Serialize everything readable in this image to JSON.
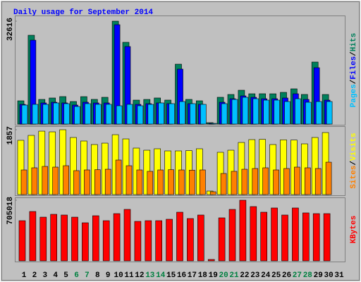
{
  "title": "Daily usage for September 2014",
  "legend_separator": "/",
  "chart_data": [
    {
      "type": "bar",
      "categories": [
        "1",
        "2",
        "3",
        "4",
        "5",
        "6",
        "7",
        "8",
        "9",
        "10",
        "11",
        "12",
        "13",
        "14",
        "15",
        "16",
        "17",
        "18",
        "19",
        "20",
        "21",
        "22",
        "23",
        "24",
        "25",
        "26",
        "27",
        "28",
        "29",
        "30",
        "31"
      ],
      "x_label_colors": [
        "#000000",
        "#000000",
        "#000000",
        "#000000",
        "#000000",
        "#008040",
        "#008040",
        "#000000",
        "#000000",
        "#000000",
        "#000000",
        "#000000",
        "#008040",
        "#008040",
        "#000000",
        "#000000",
        "#000000",
        "#000000",
        "#000000",
        "#008040",
        "#008040",
        "#000000",
        "#000000",
        "#000000",
        "#000000",
        "#000000",
        "#008040",
        "#008040",
        "#000000",
        "#000000",
        "#000000"
      ],
      "ylim": [
        0,
        32616
      ],
      "yticks": [
        32616
      ],
      "series": [
        {
          "name": "Hits",
          "color": "#00805c",
          "values": [
            7372,
            28148,
            7819,
            8266,
            8713,
            7149,
            8700,
            7830,
            8489,
            32616,
            25914,
            7596,
            7812,
            8270,
            7601,
            18989,
            7822,
            7375,
            447,
            8491,
            9383,
            10723,
            9606,
            9612,
            9598,
            10053,
            11170,
            9390,
            19659,
            9380,
            0
          ]
        },
        {
          "name": "Files",
          "color": "#0000ff",
          "values": [
            6255,
            26585,
            6702,
            6925,
            6710,
            6032,
            6931,
            6700,
            6705,
            31500,
            24574,
            6250,
            6478,
            6702,
            6480,
            17425,
            6476,
            6258,
            223,
            6925,
            8042,
            8936,
            8489,
            8040,
            8045,
            8266,
            9606,
            7819,
            17872,
            7596,
            0
          ]
        },
        {
          "name": "Pages",
          "color": "#00c0ff",
          "values": [
            6032,
            6255,
            6250,
            6702,
            6478,
            5585,
            6480,
            6258,
            6260,
            5808,
            6255,
            5810,
            6252,
            6700,
            6476,
            7149,
            6479,
            6256,
            223,
            6478,
            7819,
            8489,
            8042,
            7596,
            7600,
            7149,
            8040,
            6925,
            7150,
            7147,
            0
          ]
        }
      ]
    },
    {
      "type": "bar",
      "ylim": [
        0,
        1857
      ],
      "yticks": [
        1857
      ],
      "series": [
        {
          "name": "Visits",
          "color": "#ffff00",
          "values": [
            1554,
            1695,
            1816,
            1796,
            1857,
            1635,
            1534,
            1433,
            1473,
            1715,
            1594,
            1332,
            1271,
            1312,
            1251,
            1251,
            1259,
            1312,
            101,
            1211,
            1271,
            1493,
            1574,
            1580,
            1433,
            1568,
            1561,
            1453,
            1635,
            1776,
            0
          ]
        },
        {
          "name": "Sites",
          "color": "#ff8000",
          "values": [
            706,
            767,
            807,
            787,
            827,
            686,
            706,
            712,
            726,
            989,
            827,
            706,
            666,
            706,
            712,
            706,
            700,
            706,
            81,
            605,
            666,
            726,
            747,
            767,
            706,
            747,
            787,
            767,
            747,
            928,
            0
          ]
        }
      ]
    },
    {
      "type": "bar",
      "ylim": [
        0,
        705018
      ],
      "yticks": [
        705018
      ],
      "series": [
        {
          "name": "KBytes",
          "color": "#ff0000",
          "values": [
            467300,
            573900,
            508300,
            541100,
            532900,
            508300,
            442700,
            524700,
            467300,
            549300,
            598500,
            459100,
            467300,
            467300,
            483700,
            565700,
            491900,
            532900,
            16400,
            500100,
            598500,
            705018,
            631200,
            565700,
            614900,
            532900,
            614900,
            557500,
            549300,
            549300,
            0
          ]
        }
      ]
    }
  ]
}
